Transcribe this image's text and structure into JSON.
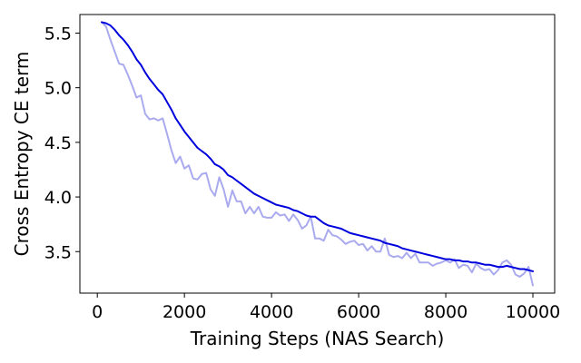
{
  "chart_data": {
    "type": "line",
    "title": "",
    "xlabel": "Training Steps (NAS Search)",
    "ylabel": "Cross Entropy CE term",
    "xlim": [
      -400,
      10500
    ],
    "ylim": [
      3.12,
      5.67
    ],
    "xticks": [
      0,
      2000,
      4000,
      6000,
      8000,
      10000
    ],
    "yticks": [
      3.5,
      4.0,
      4.5,
      5.0,
      5.5
    ],
    "xtick_labels": [
      "0",
      "2000",
      "4000",
      "6000",
      "8000",
      "10000"
    ],
    "ytick_labels": [
      "3.5",
      "4.0",
      "4.5",
      "5.0",
      "5.5"
    ],
    "grid": false,
    "legend": "none",
    "series": [
      {
        "role": "raw",
        "color": "#aaaaee",
        "x": [
          100,
          200,
          300,
          400,
          500,
          600,
          700,
          800,
          900,
          1000,
          1100,
          1200,
          1300,
          1400,
          1500,
          1600,
          1700,
          1800,
          1900,
          2000,
          2100,
          2200,
          2300,
          2400,
          2500,
          2600,
          2700,
          2800,
          2900,
          3000,
          3100,
          3200,
          3300,
          3400,
          3500,
          3600,
          3700,
          3800,
          3900,
          4000,
          4100,
          4200,
          4300,
          4400,
          4500,
          4600,
          4700,
          4800,
          4900,
          5000,
          5100,
          5200,
          5300,
          5400,
          5500,
          5600,
          5700,
          5800,
          5900,
          6000,
          6100,
          6200,
          6300,
          6400,
          6500,
          6600,
          6700,
          6800,
          6900,
          7000,
          7100,
          7200,
          7300,
          7400,
          7500,
          7600,
          7700,
          7800,
          7900,
          8000,
          8100,
          8200,
          8300,
          8400,
          8500,
          8600,
          8700,
          8800,
          8900,
          9000,
          9100,
          9200,
          9300,
          9400,
          9500,
          9600,
          9700,
          9800,
          9900,
          10000
        ],
        "values": [
          5.6,
          5.56,
          5.44,
          5.33,
          5.22,
          5.21,
          5.12,
          5.02,
          4.91,
          4.93,
          4.76,
          4.71,
          4.72,
          4.7,
          4.72,
          4.58,
          4.43,
          4.31,
          4.37,
          4.26,
          4.29,
          4.17,
          4.16,
          4.21,
          4.22,
          4.07,
          4.01,
          4.18,
          4.07,
          3.91,
          4.06,
          3.96,
          3.96,
          3.85,
          3.91,
          3.85,
          3.91,
          3.82,
          3.81,
          3.81,
          3.86,
          3.83,
          3.84,
          3.78,
          3.84,
          3.79,
          3.71,
          3.74,
          3.82,
          3.62,
          3.62,
          3.6,
          3.7,
          3.65,
          3.64,
          3.61,
          3.57,
          3.59,
          3.6,
          3.56,
          3.57,
          3.51,
          3.55,
          3.5,
          3.5,
          3.62,
          3.47,
          3.45,
          3.46,
          3.44,
          3.49,
          3.44,
          3.48,
          3.4,
          3.4,
          3.4,
          3.37,
          3.39,
          3.4,
          3.42,
          3.4,
          3.43,
          3.35,
          3.38,
          3.37,
          3.31,
          3.39,
          3.35,
          3.33,
          3.34,
          3.29,
          3.33,
          3.4,
          3.42,
          3.38,
          3.29,
          3.27,
          3.3,
          3.36,
          3.19
        ]
      },
      {
        "role": "smoothed",
        "color": "#0000dd",
        "x": [
          100,
          200,
          300,
          400,
          500,
          600,
          700,
          800,
          900,
          1000,
          1100,
          1200,
          1300,
          1400,
          1500,
          1600,
          1700,
          1800,
          1900,
          2000,
          2100,
          2200,
          2300,
          2400,
          2500,
          2600,
          2700,
          2800,
          2900,
          3000,
          3100,
          3200,
          3300,
          3400,
          3500,
          3600,
          3700,
          3800,
          3900,
          4000,
          4100,
          4200,
          4300,
          4400,
          4500,
          4600,
          4700,
          4800,
          4900,
          5000,
          5100,
          5200,
          5300,
          5400,
          5500,
          5600,
          5700,
          5800,
          5900,
          6000,
          6100,
          6200,
          6300,
          6400,
          6500,
          6600,
          6700,
          6800,
          6900,
          7000,
          7100,
          7200,
          7300,
          7400,
          7500,
          7600,
          7700,
          7800,
          7900,
          8000,
          8100,
          8200,
          8300,
          8400,
          8500,
          8600,
          8700,
          8800,
          8900,
          9000,
          9100,
          9200,
          9300,
          9400,
          9500,
          9600,
          9700,
          9800,
          9900,
          10000
        ],
        "values": [
          5.6,
          5.59,
          5.57,
          5.53,
          5.48,
          5.44,
          5.39,
          5.33,
          5.26,
          5.21,
          5.14,
          5.08,
          5.03,
          4.98,
          4.94,
          4.87,
          4.8,
          4.72,
          4.66,
          4.6,
          4.55,
          4.5,
          4.45,
          4.42,
          4.39,
          4.35,
          4.3,
          4.28,
          4.25,
          4.2,
          4.18,
          4.15,
          4.12,
          4.09,
          4.06,
          4.03,
          4.01,
          3.99,
          3.97,
          3.95,
          3.93,
          3.92,
          3.91,
          3.9,
          3.88,
          3.87,
          3.85,
          3.83,
          3.82,
          3.82,
          3.79,
          3.76,
          3.74,
          3.73,
          3.72,
          3.71,
          3.69,
          3.67,
          3.66,
          3.65,
          3.64,
          3.63,
          3.62,
          3.61,
          3.6,
          3.58,
          3.57,
          3.56,
          3.55,
          3.53,
          3.52,
          3.51,
          3.5,
          3.49,
          3.48,
          3.47,
          3.46,
          3.45,
          3.44,
          3.43,
          3.43,
          3.42,
          3.42,
          3.41,
          3.41,
          3.4,
          3.4,
          3.39,
          3.38,
          3.38,
          3.37,
          3.36,
          3.36,
          3.37,
          3.36,
          3.35,
          3.34,
          3.34,
          3.33,
          3.32
        ]
      }
    ]
  }
}
